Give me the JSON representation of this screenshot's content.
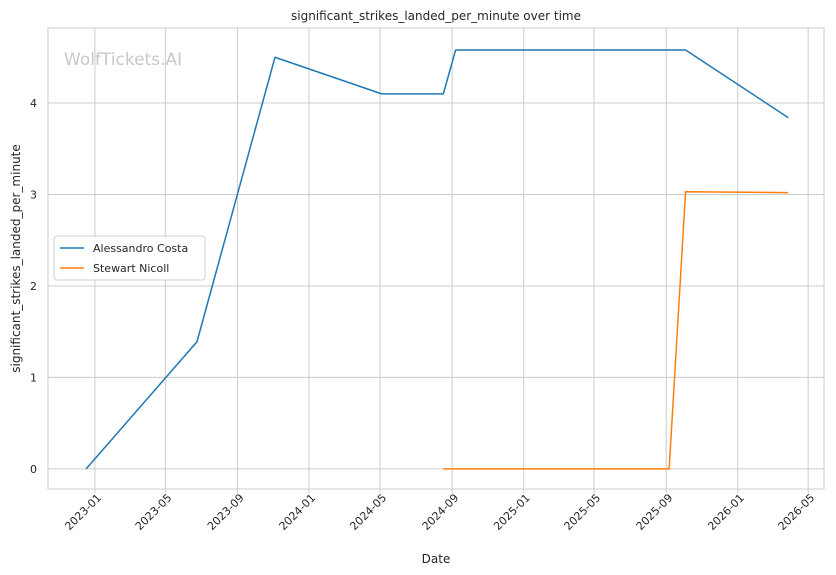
{
  "chart_data": {
    "type": "line",
    "title": "significant_strikes_landed_per_minute over time",
    "xlabel": "Date",
    "ylabel": "significant_strikes_landed_per_minute",
    "watermark": "WolfTickets.AI",
    "x_ticks": [
      "2023-01",
      "2023-05",
      "2023-09",
      "2024-01",
      "2024-05",
      "2024-09",
      "2025-01",
      "2025-05",
      "2025-09",
      "2026-01",
      "2026-05"
    ],
    "y_ticks": [
      0,
      1,
      2,
      3,
      4
    ],
    "xlim": [
      "2022-10-13",
      "2026-05-28"
    ],
    "ylim": [
      -0.22,
      4.82
    ],
    "grid": true,
    "legend_position": "center-left",
    "series": [
      {
        "name": "Alessandro Costa",
        "color": "#1f77b4",
        "points": [
          {
            "x": "2022-12-17",
            "y": 0.0
          },
          {
            "x": "2023-06-24",
            "y": 1.39
          },
          {
            "x": "2023-11-04",
            "y": 4.5
          },
          {
            "x": "2024-05-04",
            "y": 4.1
          },
          {
            "x": "2024-08-17",
            "y": 4.1
          },
          {
            "x": "2024-09-07",
            "y": 4.58
          },
          {
            "x": "2025-10-04",
            "y": 4.58
          },
          {
            "x": "2026-03-28",
            "y": 3.84
          }
        ]
      },
      {
        "name": "Stewart Nicoll",
        "color": "#ff7f0e",
        "points": [
          {
            "x": "2024-08-17",
            "y": 0.0
          },
          {
            "x": "2025-09-06",
            "y": 0.0
          },
          {
            "x": "2025-10-04",
            "y": 3.03
          },
          {
            "x": "2026-03-28",
            "y": 3.02
          }
        ]
      }
    ]
  }
}
